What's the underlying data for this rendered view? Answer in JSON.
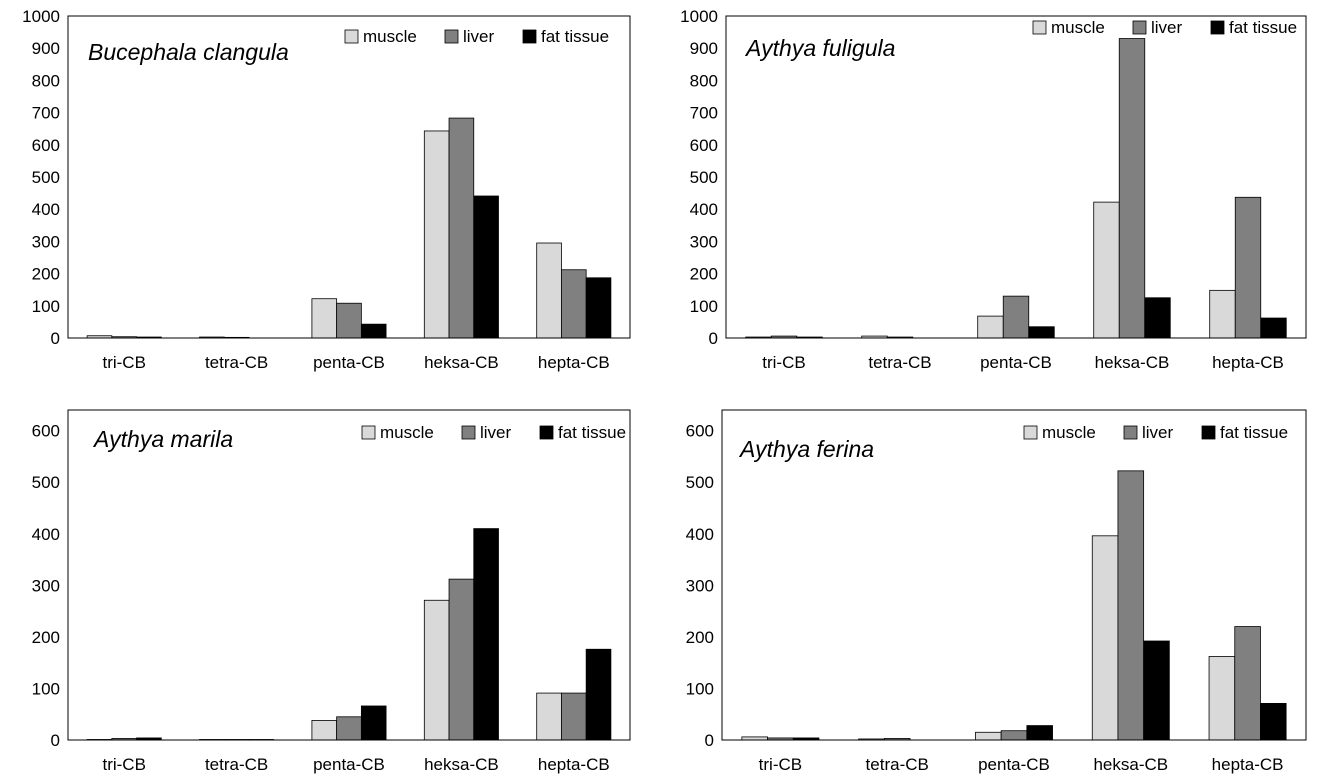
{
  "chart_data": [
    {
      "type": "bar",
      "title": "Bucephala clangula",
      "categories": [
        "tri-CB",
        "tetra-CB",
        "penta-CB",
        "heksa-CB",
        "hepta-CB"
      ],
      "series": [
        {
          "name": "muscle",
          "color": "#d9d9d9",
          "values": [
            7,
            3,
            122,
            643,
            295
          ]
        },
        {
          "name": "liver",
          "color": "#808080",
          "values": [
            4,
            2,
            108,
            683,
            212
          ]
        },
        {
          "name": "fat tissue",
          "color": "#000000",
          "values": [
            3,
            0,
            43,
            441,
            187
          ]
        }
      ],
      "ylim": [
        0,
        1000
      ],
      "yticks": [
        0,
        100,
        200,
        300,
        400,
        500,
        600,
        700,
        800,
        900,
        1000
      ],
      "legend": "top-right"
    },
    {
      "type": "bar",
      "title": "Aythya fuligula",
      "categories": [
        "tri-CB",
        "tetra-CB",
        "penta-CB",
        "heksa-CB",
        "hepta-CB"
      ],
      "series": [
        {
          "name": "muscle",
          "color": "#d9d9d9",
          "values": [
            3,
            6,
            68,
            422,
            148
          ]
        },
        {
          "name": "liver",
          "color": "#808080",
          "values": [
            6,
            3,
            130,
            930,
            437
          ]
        },
        {
          "name": "fat tissue",
          "color": "#000000",
          "values": [
            3,
            0,
            35,
            125,
            62
          ]
        }
      ],
      "ylim": [
        0,
        1000
      ],
      "yticks": [
        0,
        100,
        200,
        300,
        400,
        500,
        600,
        700,
        800,
        900,
        1000
      ],
      "legend": "top-right"
    },
    {
      "type": "bar",
      "title": "Aythya marila",
      "categories": [
        "tri-CB",
        "tetra-CB",
        "penta-CB",
        "heksa-CB",
        "hepta-CB"
      ],
      "series": [
        {
          "name": "muscle",
          "color": "#d9d9d9",
          "values": [
            1,
            1,
            38,
            271,
            91
          ]
        },
        {
          "name": "liver",
          "color": "#808080",
          "values": [
            3,
            1,
            45,
            312,
            91
          ]
        },
        {
          "name": "fat tissue",
          "color": "#000000",
          "values": [
            4,
            1,
            66,
            410,
            176
          ]
        }
      ],
      "ylim": [
        0,
        640
      ],
      "yticks": [
        0,
        100,
        200,
        300,
        400,
        500,
        600
      ],
      "legend": "top-right"
    },
    {
      "type": "bar",
      "title": "Aythya ferina",
      "categories": [
        "tri-CB",
        "tetra-CB",
        "penta-CB",
        "heksa-CB",
        "hepta-CB"
      ],
      "series": [
        {
          "name": "muscle",
          "color": "#d9d9d9",
          "values": [
            6,
            2,
            15,
            396,
            162
          ]
        },
        {
          "name": "liver",
          "color": "#808080",
          "values": [
            4,
            3,
            18,
            522,
            220
          ]
        },
        {
          "name": "fat tissue",
          "color": "#000000",
          "values": [
            4,
            0,
            28,
            192,
            71
          ]
        }
      ],
      "ylim": [
        0,
        640
      ],
      "yticks": [
        0,
        100,
        200,
        300,
        400,
        500,
        600
      ],
      "legend": "top-right"
    }
  ]
}
